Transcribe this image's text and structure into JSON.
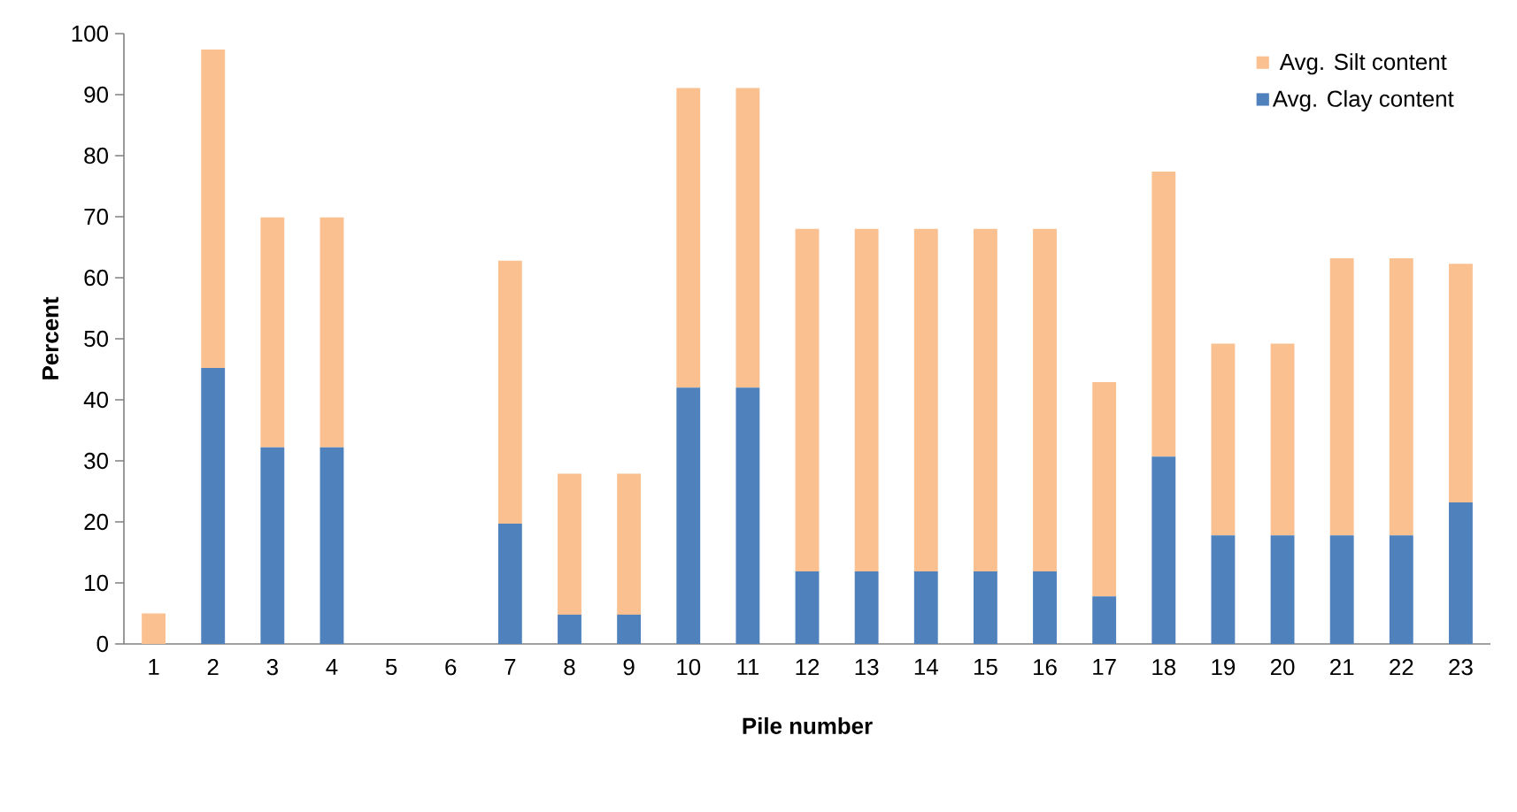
{
  "chart_data": {
    "type": "bar",
    "stacked": true,
    "xlabel": "Pile number",
    "ylabel": "Percent",
    "categories": [
      "1",
      "2",
      "3",
      "4",
      "5",
      "6",
      "7",
      "8",
      "9",
      "10",
      "11",
      "12",
      "13",
      "14",
      "15",
      "16",
      "17",
      "18",
      "19",
      "20",
      "21",
      "22",
      "23"
    ],
    "series": [
      {
        "name": "Avg. Clay content",
        "color": "#4f81bd",
        "values": [
          0,
          45.2,
          32.2,
          32.2,
          0,
          0,
          19.7,
          4.8,
          4.8,
          42,
          42,
          11.9,
          11.9,
          11.9,
          11.9,
          11.9,
          7.8,
          30.7,
          17.8,
          17.8,
          17.8,
          17.8,
          23.2
        ]
      },
      {
        "name": "Avg. Silt content",
        "color": "#fac090",
        "values": [
          5,
          52.2,
          37.7,
          37.7,
          0,
          0,
          43.1,
          23.1,
          23.1,
          49.1,
          49.1,
          56.1,
          56.1,
          56.1,
          56.1,
          56.1,
          35.1,
          46.7,
          31.4,
          31.4,
          45.4,
          45.4,
          39.1
        ]
      }
    ],
    "ylim": [
      0,
      100
    ],
    "yticks": [
      0,
      10,
      20,
      30,
      40,
      50,
      60,
      70,
      80,
      90,
      100
    ],
    "grid": false,
    "legend": "top right"
  }
}
